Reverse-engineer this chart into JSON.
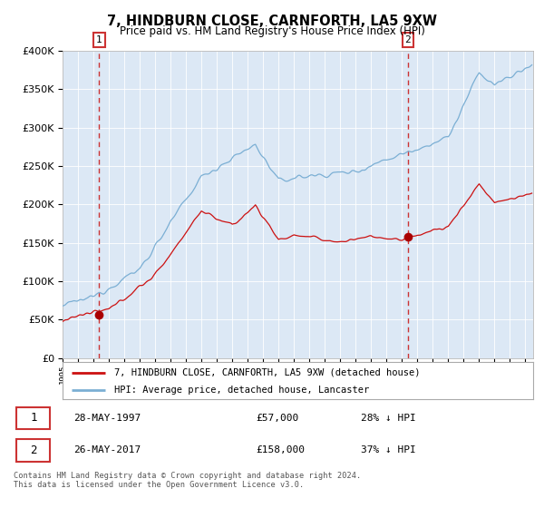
{
  "title": "7, HINDBURN CLOSE, CARNFORTH, LA5 9XW",
  "subtitle": "Price paid vs. HM Land Registry's House Price Index (HPI)",
  "legend_line1": "7, HINDBURN CLOSE, CARNFORTH, LA5 9XW (detached house)",
  "legend_line2": "HPI: Average price, detached house, Lancaster",
  "label1_date": "28-MAY-1997",
  "label1_price": "£57,000",
  "label1_stat": "28% ↓ HPI",
  "label2_date": "26-MAY-2017",
  "label2_price": "£158,000",
  "label2_stat": "37% ↓ HPI",
  "footnote": "Contains HM Land Registry data © Crown copyright and database right 2024.\nThis data is licensed under the Open Government Licence v3.0.",
  "purchase1_year": 1997.38,
  "purchase1_value": 57000,
  "purchase2_year": 2017.38,
  "purchase2_value": 158000,
  "hpi_color": "#7bafd4",
  "price_color": "#cc1111",
  "marker_color": "#aa0000",
  "dashed_color": "#cc3333",
  "bg_plot": "#dce8f5",
  "bg_fig": "#ffffff",
  "ylim": [
    0,
    400000
  ],
  "xlim_start": 1995,
  "xlim_end": 2025.5
}
